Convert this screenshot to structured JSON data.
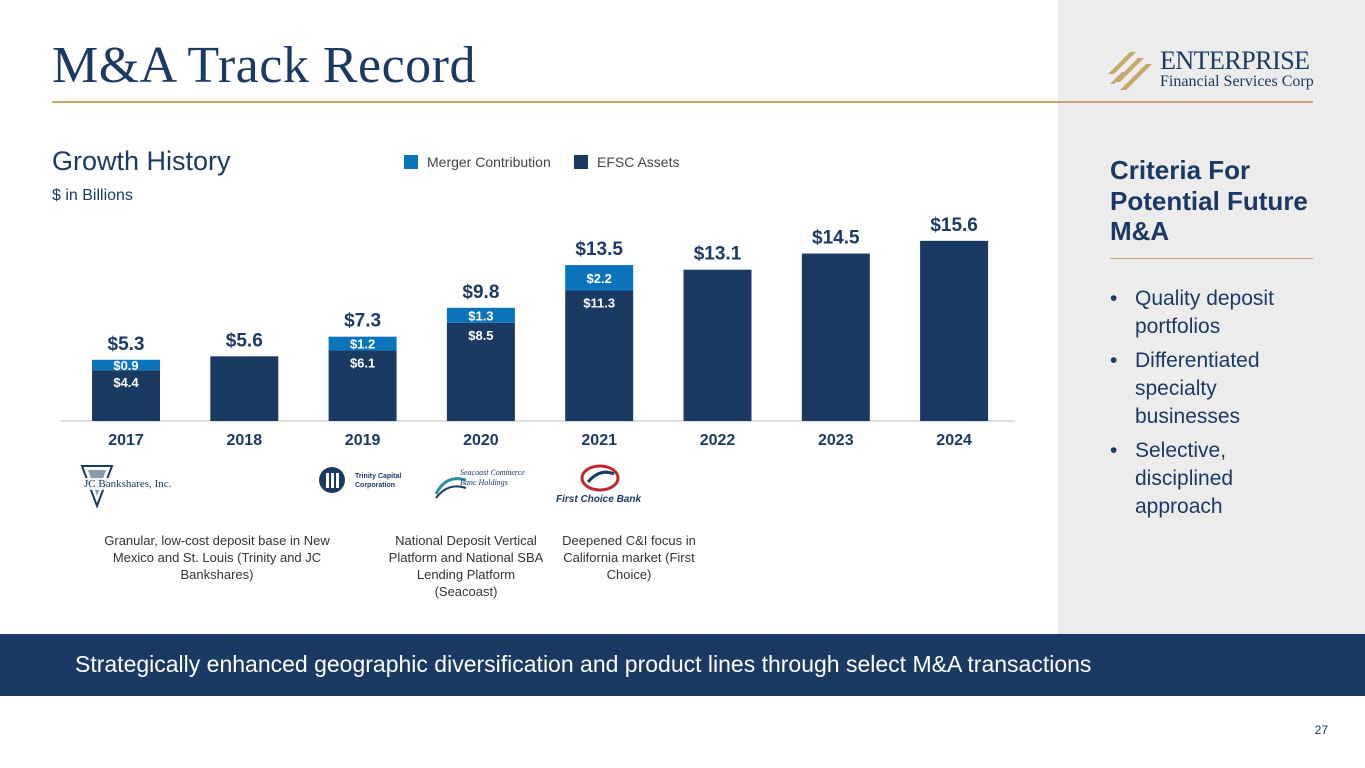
{
  "slide": {
    "title": "M&A Track Record",
    "page_number": "27",
    "banner": "Strategically enhanced geographic diversification and product lines through select M&A transactions"
  },
  "logo": {
    "name": "ENTERPRISE",
    "sub": "Financial Services Corp",
    "icon": "enterprise-chevron-logo"
  },
  "growth": {
    "heading": "Growth History",
    "units": "$ in Billions"
  },
  "legend": {
    "merger_label": "Merger Contribution",
    "efsc_label": "EFSC Assets"
  },
  "colors": {
    "navy": "#1b3a63",
    "blue": "#0b74bb",
    "gold": "#c5a86c",
    "panel": "#ececec"
  },
  "chart_data": {
    "type": "bar",
    "stacked": true,
    "categories": [
      "2017",
      "2018",
      "2019",
      "2020",
      "2021",
      "2022",
      "2023",
      "2024"
    ],
    "totals": [
      5.3,
      5.6,
      7.3,
      9.8,
      13.5,
      13.1,
      14.5,
      15.6
    ],
    "total_labels": [
      "$5.3",
      "$5.6",
      "$7.3",
      "$9.8",
      "$13.5",
      "$13.1",
      "$14.5",
      "$15.6"
    ],
    "series": [
      {
        "name": "EFSC Assets",
        "values": [
          4.4,
          5.6,
          6.1,
          8.5,
          11.3,
          13.1,
          14.5,
          15.6
        ],
        "labels": [
          "$4.4",
          "",
          "$6.1",
          "$8.5",
          "$11.3",
          "",
          "",
          ""
        ]
      },
      {
        "name": "Merger Contribution",
        "values": [
          0.9,
          0,
          1.2,
          1.3,
          2.2,
          0,
          0,
          0
        ],
        "labels": [
          "$0.9",
          "",
          "$1.2",
          "$1.3",
          "$2.2",
          "",
          "",
          ""
        ]
      }
    ],
    "ylim": [
      0,
      17
    ],
    "grid": false,
    "legend_position": "top"
  },
  "criteria": {
    "title": "Criteria For Potential Future M&A",
    "items": [
      "Quality deposit portfolios",
      "Differentiated specialty businesses",
      "Selective, disciplined approach"
    ]
  },
  "acquisitions": [
    {
      "logo_text": "JC Bankshares, Inc.",
      "icon": "jc-bankshares-logo"
    },
    {
      "logo_text": "Trinity Capital Corporation",
      "icon": "trinity-capital-logo"
    },
    {
      "logo_text": "Seacoast Commerce Banc Holdings",
      "icon": "seacoast-wave-logo"
    },
    {
      "logo_text": "First Choice Bank",
      "icon": "first-choice-bank-logo"
    }
  ],
  "notes": [
    "Granular, low-cost deposit base in New Mexico and St. Louis (Trinity and JC Bankshares)",
    "National Deposit Vertical Platform and National SBA Lending Platform (Seacoast)",
    "Deepened C&I focus in California market (First Choice)"
  ]
}
